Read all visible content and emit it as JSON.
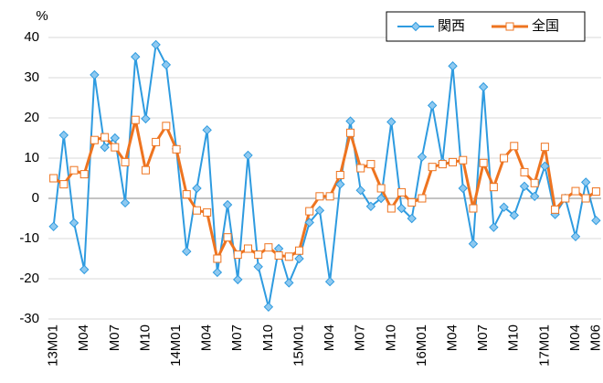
{
  "chart_data": {
    "type": "line",
    "y_label": "%",
    "categories": [
      "13M01",
      null,
      null,
      "M04",
      null,
      null,
      "M07",
      null,
      null,
      "M10",
      null,
      null,
      "14M01",
      null,
      null,
      "M04",
      null,
      null,
      "M07",
      null,
      null,
      "M10",
      null,
      null,
      "15M01",
      null,
      null,
      "M04",
      null,
      null,
      "M07",
      null,
      null,
      "M10",
      null,
      null,
      "16M01",
      null,
      null,
      "M04",
      null,
      null,
      "M07",
      null,
      null,
      "M10",
      null,
      null,
      "17M01",
      null,
      null,
      "M04",
      null,
      "M06"
    ],
    "series": [
      {
        "name": "関西",
        "color": "#2e9be0",
        "marker": "diamond",
        "values": [
          -7,
          15.7,
          -6.1,
          -17.7,
          30.7,
          12.7,
          15,
          -1.1,
          35.2,
          19.8,
          38.2,
          33.2,
          12.3,
          -13.2,
          2.5,
          17,
          -18.4,
          -1.6,
          -20.2,
          10.7,
          -17,
          -27,
          -12.5,
          -21,
          -15,
          -6,
          -3,
          -20.7,
          3.5,
          19.2,
          2,
          -2,
          0,
          19,
          -2.5,
          -5,
          10.3,
          23.1,
          9,
          32.9,
          2.5,
          -11.3,
          27.7,
          -7.2,
          -2.2,
          -4.2,
          3,
          0.5,
          8,
          -4,
          0,
          -9.5,
          4,
          -5.5
        ]
      },
      {
        "name": "全国",
        "color": "#ee7420",
        "marker": "square",
        "values": [
          5,
          3.5,
          7,
          6,
          14.5,
          15.2,
          12.7,
          9,
          19.5,
          7,
          14,
          18,
          12.2,
          1,
          -3,
          -3.5,
          -15,
          -9.7,
          -14,
          -12.5,
          -14,
          -12.2,
          -14.2,
          -14.5,
          -13,
          -3.2,
          0.5,
          0.5,
          5.8,
          16.3,
          7.5,
          8.5,
          2.5,
          -2.5,
          1.5,
          -1,
          0,
          7.8,
          8.5,
          9,
          9.5,
          -2.5,
          8.8,
          2.8,
          10,
          13,
          6.5,
          3.8,
          12.8,
          -2.8,
          0,
          1.8,
          0,
          1.7
        ]
      }
    ],
    "ylim": [
      -30,
      40
    ],
    "yticks": [
      -30,
      -20,
      -10,
      0,
      10,
      20,
      30,
      40
    ],
    "grid": true,
    "legend": "top-right"
  }
}
